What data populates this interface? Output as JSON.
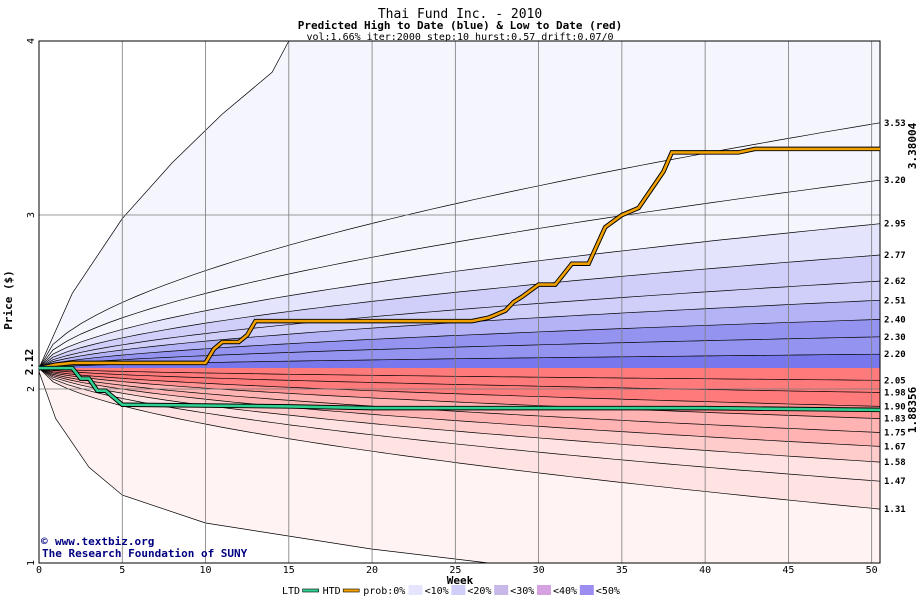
{
  "chart_data": {
    "type": "area",
    "title": "Thai Fund Inc. - 2010",
    "subtitle": "Predicted High to Date (blue) &  Low to Date (red)",
    "params": "vol:1.66% iter:2000 step:10 hurst:0.57 drift:0.07/0",
    "xlabel": "Week",
    "ylabel": "Price ($)",
    "xlim": [
      0,
      50.5
    ],
    "ylim": [
      1,
      4
    ],
    "x_ticks": [
      "0",
      "5",
      "10",
      "15",
      "20",
      "25",
      "30",
      "35",
      "40",
      "45",
      "50"
    ],
    "y_ticks": [
      "1",
      "2",
      "3",
      "4"
    ],
    "grid": true,
    "start_price": "2.12",
    "htd_final_label": "3.38004",
    "ltd_final_label": "1.88356",
    "high_band_labels": [
      "3.53",
      "3.20",
      "2.95",
      "2.77",
      "2.62",
      "2.51",
      "2.40",
      "2.30",
      "2.20"
    ],
    "high_band_values": [
      3.53,
      3.2,
      2.95,
      2.77,
      2.62,
      2.51,
      2.4,
      2.3,
      2.2
    ],
    "low_band_labels": [
      "2.05",
      "1.98",
      "1.90",
      "1.83",
      "1.75",
      "1.67",
      "1.58",
      "1.47",
      "1.31"
    ],
    "low_band_values": [
      2.05,
      1.98,
      1.9,
      1.83,
      1.75,
      1.67,
      1.58,
      1.47,
      1.31
    ],
    "outer_high_curve": {
      "x": [
        0,
        2,
        5,
        8,
        11,
        14,
        15
      ],
      "y": [
        2.12,
        2.55,
        2.98,
        3.3,
        3.58,
        3.82,
        4.0
      ]
    },
    "outer_low_curve": {
      "x": [
        0,
        1,
        3,
        5,
        10,
        20,
        27,
        30
      ],
      "y": [
        2.1,
        1.83,
        1.55,
        1.39,
        1.23,
        1.08,
        1.0,
        1.0
      ]
    },
    "htd_series": {
      "name": "HTD",
      "x": [
        0,
        1,
        2,
        3,
        5,
        9,
        10,
        10.5,
        11,
        12,
        12.5,
        13,
        25,
        26,
        27,
        28,
        28.5,
        29,
        30,
        31,
        32,
        33,
        34,
        35,
        36,
        37,
        37.5,
        38,
        42,
        43,
        50.5
      ],
      "y": [
        2.12,
        2.14,
        2.15,
        2.15,
        2.15,
        2.15,
        2.15,
        2.23,
        2.27,
        2.27,
        2.31,
        2.39,
        2.39,
        2.39,
        2.41,
        2.45,
        2.5,
        2.53,
        2.6,
        2.6,
        2.72,
        2.72,
        2.93,
        3.0,
        3.04,
        3.18,
        3.25,
        3.36,
        3.36,
        3.38,
        3.38
      ]
    },
    "ltd_series": {
      "name": "LTD",
      "x": [
        0,
        2,
        2.5,
        3,
        3.5,
        4,
        5,
        15,
        20,
        30,
        40,
        50.5
      ],
      "y": [
        2.12,
        2.12,
        2.06,
        2.06,
        1.99,
        1.99,
        1.91,
        1.9,
        1.89,
        1.89,
        1.89,
        1.88
      ]
    },
    "colors": {
      "htd_line": "#f0a000",
      "ltd_line": "#30d090",
      "grid": "#7a7a7a",
      "blue_bands": [
        "#f5f5fe",
        "#e4e4fc",
        "#cfcff9",
        "#b3b3f5",
        "#9494f0",
        "#7878ec"
      ],
      "red_bands": [
        "#fff3f3",
        "#ffe2e2",
        "#ffcccc",
        "#ffb3b3",
        "#ff9292",
        "#ff7a7a"
      ]
    },
    "legend": [
      "LTD",
      "HTD",
      "prob:0%",
      "<10%",
      "<20%",
      "<30%",
      "<40%",
      "<50%"
    ]
  },
  "credit": {
    "symbol": "©",
    "site": "www.textbiz.org",
    "org": "The Research Foundation of SUNY"
  }
}
